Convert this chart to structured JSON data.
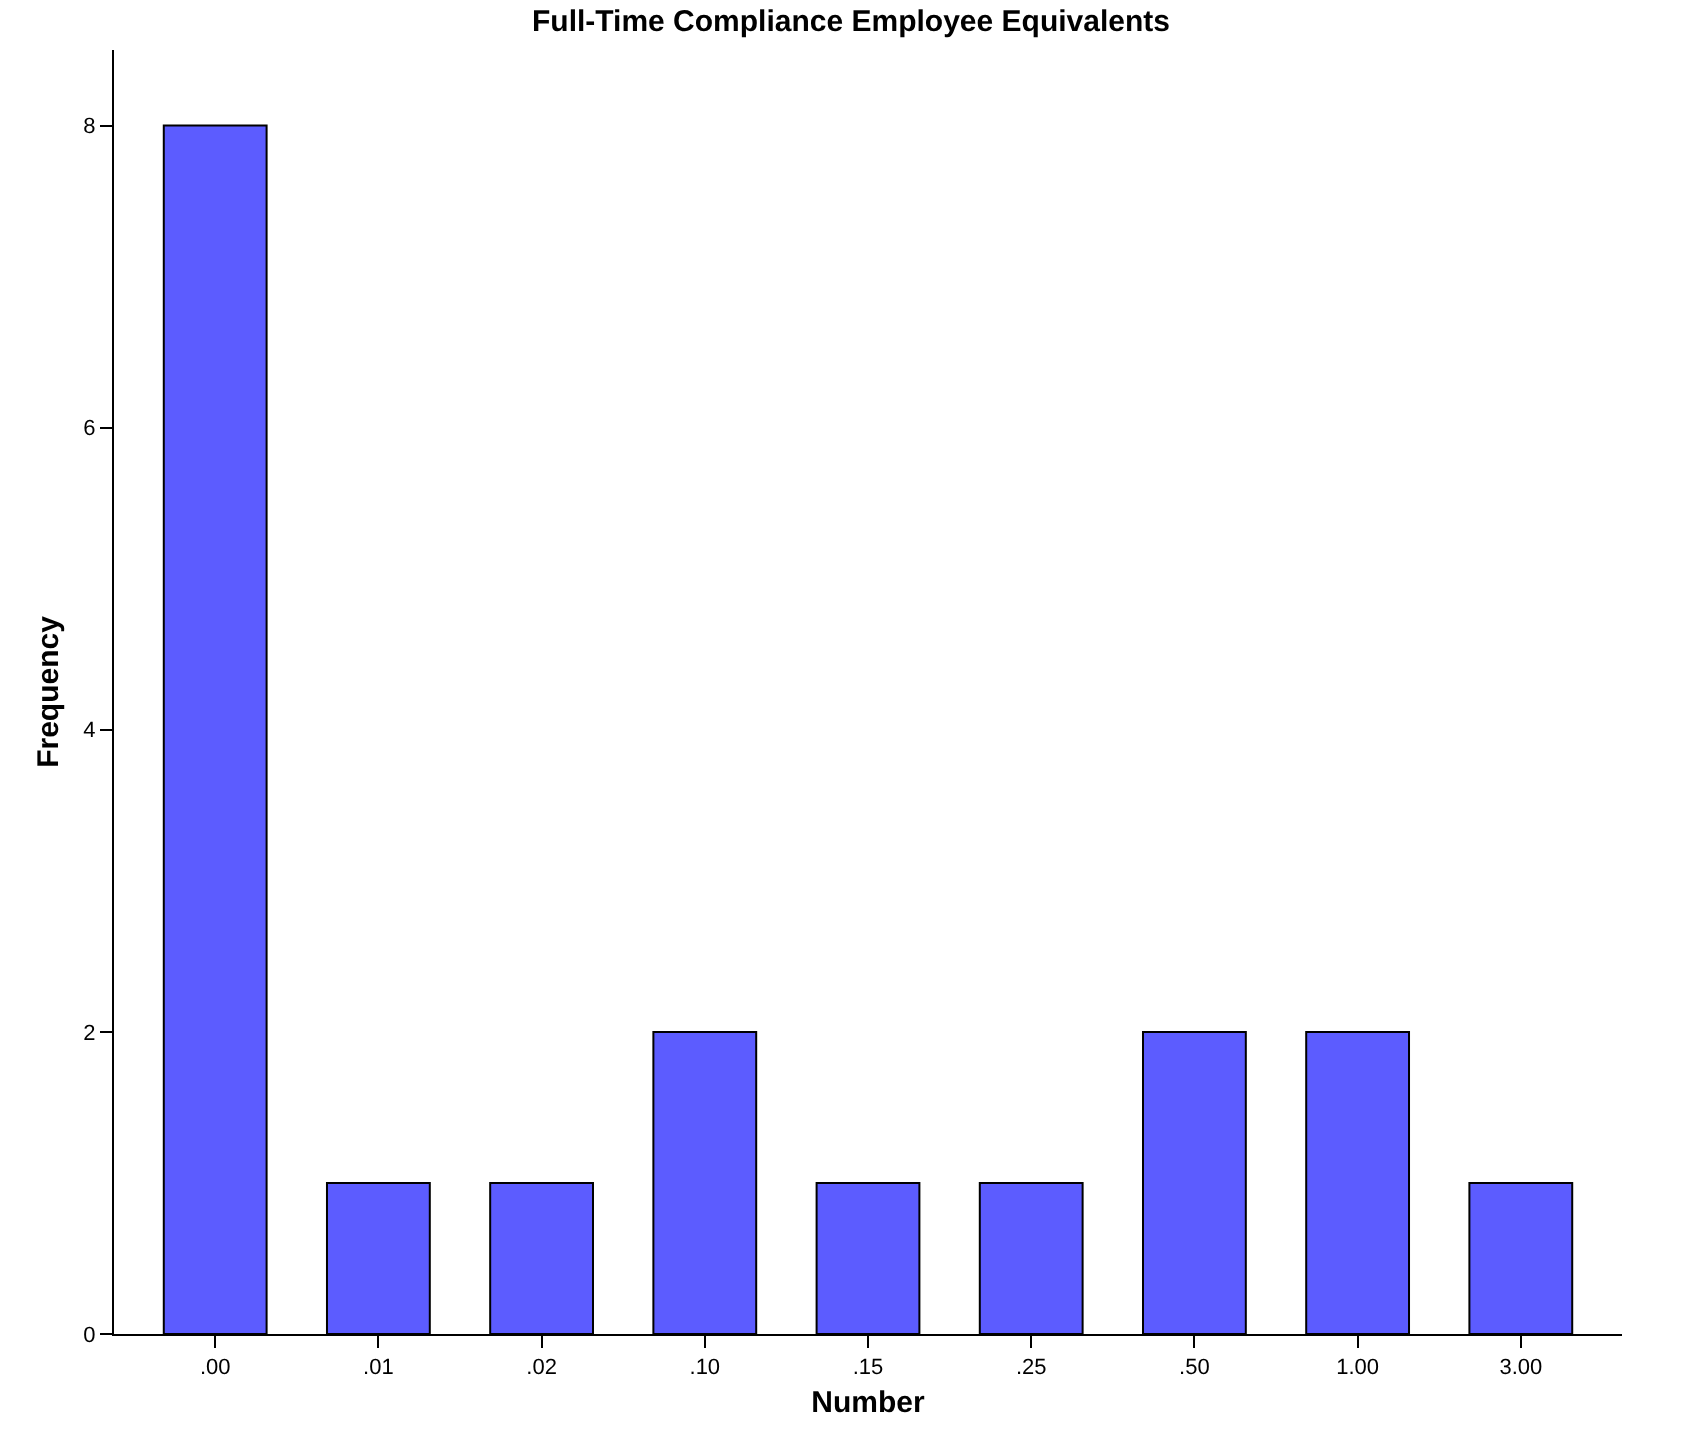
{
  "chart_data": {
    "type": "bar",
    "title": "Full-Time Compliance Employee Equivalents",
    "xlabel": "Number",
    "ylabel": "Frequency",
    "categories": [
      ".00",
      ".01",
      ".02",
      ".10",
      ".15",
      ".25",
      ".50",
      "1.00",
      "3.00"
    ],
    "values": [
      8,
      1,
      1,
      2,
      1,
      1,
      2,
      2,
      1
    ],
    "color": "#5c5cff",
    "ylim": [
      0,
      8.5
    ],
    "yticks": [
      0,
      2,
      4,
      6,
      8
    ],
    "grid": false
  }
}
